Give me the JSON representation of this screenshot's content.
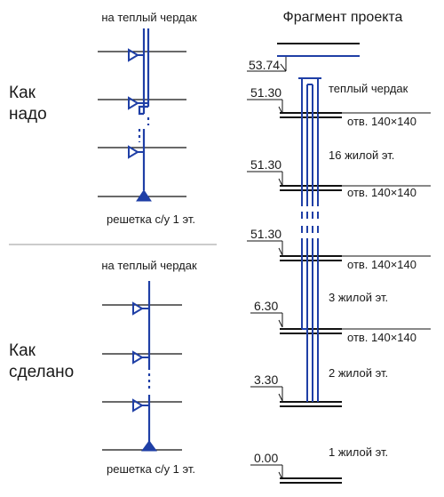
{
  "left_top": {
    "attic_label": "на теплый чердак",
    "title_line1": "Как",
    "title_line2": "надо",
    "grate_label": "решетка с/у 1 эт."
  },
  "left_bottom": {
    "attic_label": "на теплый чердак",
    "title_line1": "Как",
    "title_line2": "сделано",
    "grate_label": "решетка с/у 1 эт."
  },
  "right": {
    "title": "Фрагмент проекта",
    "levels": [
      "53.74",
      "51.30",
      "51.30",
      "51.30",
      "6.30",
      "3.30",
      "0.00"
    ],
    "floors": [
      "теплый чердак",
      "16 жилой эт.",
      "3 жилой эт.",
      "2 жилой эт.",
      "1 жилой эт."
    ],
    "openings": [
      "отв. 140×140",
      "отв. 140×140",
      "отв. 140×140",
      "отв. 140×140"
    ]
  },
  "colors": {
    "pipe_blue": "#1f3fa6",
    "line_black": "#111111",
    "divider_gray": "#9a9a9a"
  }
}
